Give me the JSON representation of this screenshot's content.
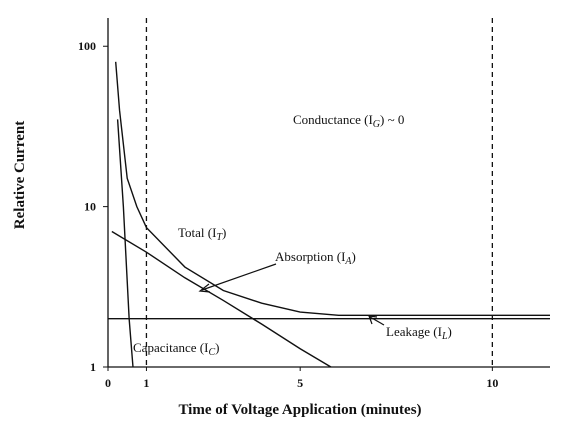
{
  "chart_data": {
    "type": "line",
    "xlabel": "Time of Voltage Application (minutes)",
    "ylabel": "Relative Current",
    "log_y": true,
    "xlim": [
      0,
      11.5
    ],
    "ylim": [
      1,
      150
    ],
    "xticks": [
      0,
      1,
      5,
      10
    ],
    "yticks": [
      1,
      10,
      100
    ],
    "vlines": [
      1,
      10
    ],
    "series": [
      {
        "label": [
          "Total (I",
          "T",
          ")"
        ],
        "color": "#111111",
        "x": [
          0.2,
          0.3,
          0.5,
          0.75,
          1,
          2,
          3,
          4,
          5,
          6,
          11.5
        ],
        "values": [
          80,
          40,
          15,
          10,
          7.4,
          4.2,
          3,
          2.5,
          2.2,
          2.1,
          2.1
        ]
      },
      {
        "label": [
          "Absorption (I",
          "A",
          ")"
        ],
        "color": "#111111",
        "x": [
          0.1,
          1,
          2,
          3,
          4,
          5,
          5.8
        ],
        "values": [
          7,
          5.2,
          3.6,
          2.6,
          1.85,
          1.3,
          1
        ]
      },
      {
        "label": [
          "Leakage (I",
          "L",
          ")"
        ],
        "color": "#111111",
        "x": [
          0,
          11.5
        ],
        "values": [
          2,
          2
        ]
      },
      {
        "label": [
          "Capacitance (I",
          "C",
          ")"
        ],
        "color": "#111111",
        "x": [
          0.25,
          0.4,
          0.55,
          0.65
        ],
        "values": [
          35,
          10,
          2,
          1
        ]
      }
    ],
    "annotation": [
      "Conductance (I",
      "G",
      ") ~ 0"
    ]
  }
}
